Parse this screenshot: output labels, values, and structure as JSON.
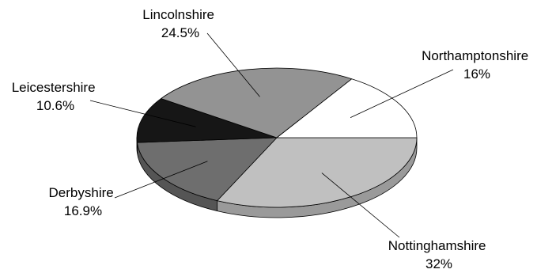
{
  "chart_data": {
    "type": "pie",
    "title": "",
    "style": "3d",
    "start": "3 o'clock, clockwise",
    "slices": [
      {
        "label": "Nottinghamshire",
        "value": 32,
        "value_label": "32%",
        "color": "#c0c0c0",
        "side_color": "#9a9a9a"
      },
      {
        "label": "Derbyshire",
        "value": 16.9,
        "value_label": "16.9%",
        "color": "#6e6e6e",
        "side_color": "#555555"
      },
      {
        "label": "Leicestershire",
        "value": 10.6,
        "value_label": "10.6%",
        "color": "#161616",
        "side_color": "#0a0a0a"
      },
      {
        "label": "Lincolnshire",
        "value": 24.5,
        "value_label": "24.5%",
        "color": "#939393",
        "side_color": "#777777"
      },
      {
        "label": "Northamptonshire",
        "value": 16,
        "value_label": "16%",
        "color": "#ffffff",
        "side_color": "#dddddd"
      }
    ]
  }
}
